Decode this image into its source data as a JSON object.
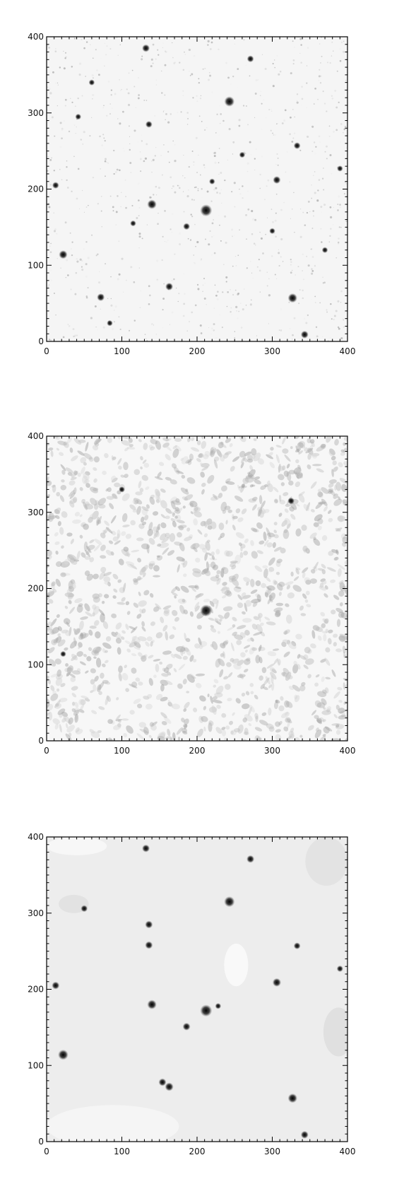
{
  "panels": [
    {
      "name": "raw-image",
      "axes": {
        "x_ticks": [
          "0",
          "100",
          "200",
          "300",
          "400"
        ],
        "y_ticks": [
          "0",
          "100",
          "200",
          "300",
          "400"
        ],
        "xlim": [
          0,
          400
        ],
        "ylim": [
          0,
          400
        ]
      },
      "background_level": 0.96,
      "stars": [
        {
          "x": 212,
          "y": 172,
          "s": 1.0
        },
        {
          "x": 243,
          "y": 315,
          "s": 0.8
        },
        {
          "x": 140,
          "y": 180,
          "s": 0.7
        },
        {
          "x": 327,
          "y": 57,
          "s": 0.7
        },
        {
          "x": 22,
          "y": 114,
          "s": 0.6
        },
        {
          "x": 72,
          "y": 58,
          "s": 0.5
        },
        {
          "x": 163,
          "y": 72,
          "s": 0.5
        },
        {
          "x": 132,
          "y": 385,
          "s": 0.5
        },
        {
          "x": 271,
          "y": 371,
          "s": 0.4
        },
        {
          "x": 136,
          "y": 285,
          "s": 0.4
        },
        {
          "x": 306,
          "y": 212,
          "s": 0.5
        },
        {
          "x": 333,
          "y": 257,
          "s": 0.4
        },
        {
          "x": 343,
          "y": 9,
          "s": 0.5
        },
        {
          "x": 186,
          "y": 151,
          "s": 0.4
        },
        {
          "x": 12,
          "y": 205,
          "s": 0.4
        },
        {
          "x": 390,
          "y": 227,
          "s": 0.3
        },
        {
          "x": 42,
          "y": 295,
          "s": 0.3
        },
        {
          "x": 84,
          "y": 24,
          "s": 0.3
        },
        {
          "x": 115,
          "y": 155,
          "s": 0.3
        },
        {
          "x": 260,
          "y": 245,
          "s": 0.3
        },
        {
          "x": 370,
          "y": 120,
          "s": 0.3
        },
        {
          "x": 220,
          "y": 210,
          "s": 0.3
        },
        {
          "x": 300,
          "y": 145,
          "s": 0.3
        },
        {
          "x": 60,
          "y": 340,
          "s": 0.3
        }
      ]
    },
    {
      "name": "filtered-image",
      "axes": {
        "x_ticks": [
          "0",
          "100",
          "200",
          "300",
          "400"
        ],
        "y_ticks": [
          "0",
          "100",
          "200",
          "300",
          "400"
        ],
        "xlim": [
          0,
          400
        ],
        "ylim": [
          0,
          400
        ]
      },
      "background_level": 0.97,
      "stars": [
        {
          "x": 212,
          "y": 171,
          "s": 1.0
        },
        {
          "x": 325,
          "y": 315,
          "s": 0.4
        },
        {
          "x": 22,
          "y": 114,
          "s": 0.3
        },
        {
          "x": 100,
          "y": 330,
          "s": 0.3
        }
      ]
    },
    {
      "name": "model-image",
      "axes": {
        "x_ticks": [
          "0",
          "100",
          "200",
          "300",
          "400"
        ],
        "y_ticks": [
          "0",
          "100",
          "200",
          "300",
          "400"
        ],
        "xlim": [
          0,
          400
        ],
        "ylim": [
          0,
          400
        ]
      },
      "background_level": 0.93,
      "stars": [
        {
          "x": 212,
          "y": 172,
          "s": 1.0
        },
        {
          "x": 243,
          "y": 315,
          "s": 0.85
        },
        {
          "x": 140,
          "y": 180,
          "s": 0.7
        },
        {
          "x": 327,
          "y": 57,
          "s": 0.7
        },
        {
          "x": 22,
          "y": 114,
          "s": 0.8
        },
        {
          "x": 163,
          "y": 72,
          "s": 0.6
        },
        {
          "x": 154,
          "y": 78,
          "s": 0.5
        },
        {
          "x": 132,
          "y": 385,
          "s": 0.5
        },
        {
          "x": 271,
          "y": 371,
          "s": 0.5
        },
        {
          "x": 136,
          "y": 285,
          "s": 0.5
        },
        {
          "x": 306,
          "y": 209,
          "s": 0.6
        },
        {
          "x": 333,
          "y": 257,
          "s": 0.4
        },
        {
          "x": 343,
          "y": 9,
          "s": 0.5
        },
        {
          "x": 186,
          "y": 151,
          "s": 0.5
        },
        {
          "x": 12,
          "y": 205,
          "s": 0.5
        },
        {
          "x": 390,
          "y": 227,
          "s": 0.35
        },
        {
          "x": 50,
          "y": 306,
          "s": 0.4
        },
        {
          "x": 136,
          "y": 258,
          "s": 0.5
        },
        {
          "x": 228,
          "y": 178,
          "s": 0.3
        }
      ]
    }
  ]
}
